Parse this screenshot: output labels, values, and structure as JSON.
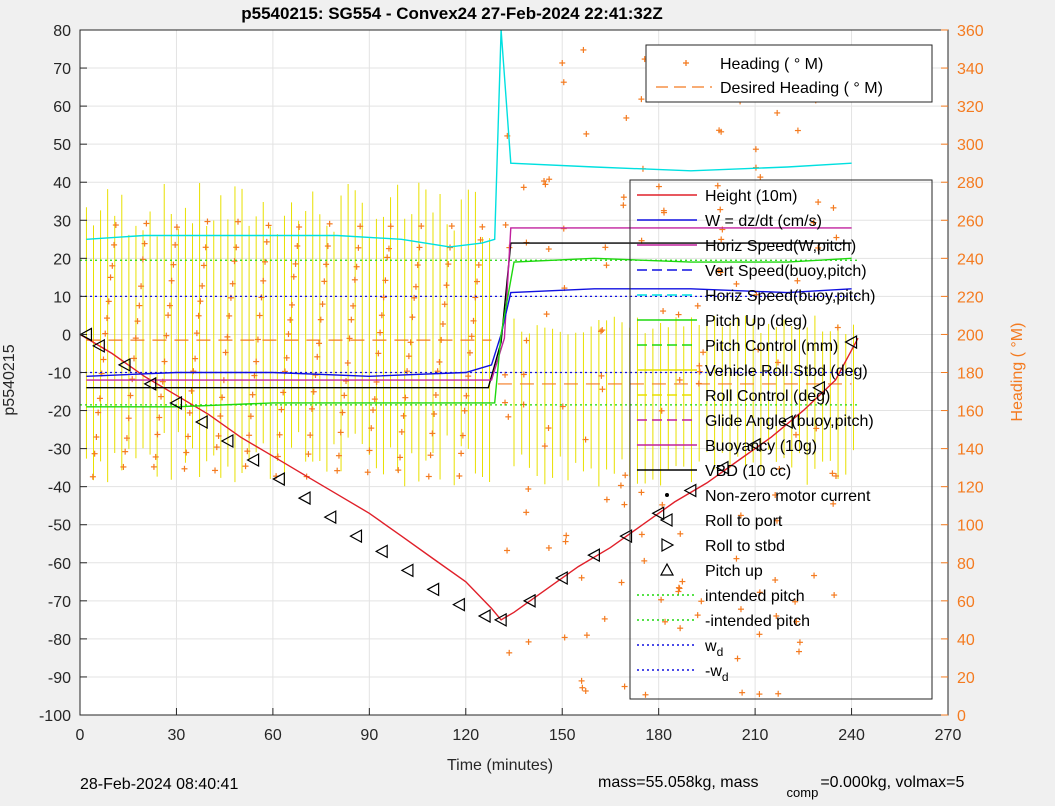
{
  "chart_data": {
    "type": "line",
    "title": "p5540215: SG554 - Convex24 27-Feb-2024 22:41:32Z",
    "xlabel": "Time (minutes)",
    "ylabel_left": "p5540215",
    "ylabel_right": "Heading (  °M)",
    "xlim": [
      0,
      270
    ],
    "ylim_left": [
      -100,
      80
    ],
    "ylim_right": [
      0,
      360
    ],
    "x_ticks": [
      "0",
      "30",
      "60",
      "90",
      "120",
      "150",
      "180",
      "210",
      "240",
      "270"
    ],
    "y_ticks_left": [
      "80",
      "70",
      "60",
      "50",
      "40",
      "30",
      "20",
      "10",
      "0",
      "-10",
      "-20",
      "-30",
      "-40",
      "-50",
      "-60",
      "-70",
      "-80",
      "-90",
      "-100"
    ],
    "y_ticks_right": [
      "360",
      "340",
      "320",
      "300",
      "280",
      "260",
      "240",
      "220",
      "200",
      "180",
      "160",
      "140",
      "120",
      "100",
      "80",
      "60",
      "40",
      "20",
      "0"
    ],
    "grid": true,
    "legend_right": {
      "placement": "top-right",
      "entries": [
        {
          "label": "Heading (  ° M)",
          "color": "#f47b20",
          "style": "plus"
        },
        {
          "label": "Desired Heading (    ° M)",
          "color": "#f47b20",
          "style": "dash"
        }
      ]
    },
    "legend_left": {
      "placement": "right",
      "entries": [
        {
          "label": "Height (10m)",
          "color": "#e0202a",
          "style": "solid"
        },
        {
          "label": "W = dz/dt (cm/s)",
          "color": "#1010e0",
          "style": "solid"
        },
        {
          "label": "Horiz Speed(W,pitch)",
          "color": "#c0209e",
          "style": "solid"
        },
        {
          "label": "Vert Speed(buoy,pitch)",
          "color": "#1010e0",
          "style": "dash"
        },
        {
          "label": "Horiz Speed(buoy,pitch)",
          "color": "#00e0e0",
          "style": "dash"
        },
        {
          "label": "Pitch Up (deg)",
          "color": "#1ed80e",
          "style": "solid"
        },
        {
          "label": "Pitch Control (mm)",
          "color": "#1ed80e",
          "style": "dash"
        },
        {
          "label": "Vehicle Roll Stbd (deg)",
          "color": "#e8e000",
          "style": "solid"
        },
        {
          "label": "Roll Control (deg)",
          "color": "#e8e000",
          "style": "dash"
        },
        {
          "label": "Glide Angle (buoy,pitch)",
          "color": "#c0209e",
          "style": "dash"
        },
        {
          "label": "Buoyancy (10g)",
          "color": "#c0209e",
          "style": "solid"
        },
        {
          "label": "VBD (10 cc)",
          "color": "#000000",
          "style": "solid"
        },
        {
          "label": "Non-zero motor current",
          "color": "#000000",
          "style": "dot"
        },
        {
          "label": "Roll to port",
          "color": "#000000",
          "style": "tri-left"
        },
        {
          "label": "Roll to stbd",
          "color": "#000000",
          "style": "tri-right"
        },
        {
          "label": "Pitch up",
          "color": "#000000",
          "style": "tri-up"
        },
        {
          "label": "intended pitch",
          "color": "#1ed80e",
          "style": "dotted"
        },
        {
          "label": "-intended pitch",
          "color": "#1ed80e",
          "style": "dotted"
        },
        {
          "label": "w",
          "sub": "d",
          "color": "#1010e0",
          "style": "dotted"
        },
        {
          "label": "-w",
          "sub": "d",
          "color": "#1010e0",
          "style": "dotted"
        }
      ]
    },
    "series": [
      {
        "name": "Height (10m)",
        "color": "#e0202a",
        "x": [
          0,
          10,
          20,
          30,
          40,
          50,
          60,
          70,
          80,
          90,
          100,
          110,
          120,
          128,
          131,
          135,
          145,
          155,
          165,
          175,
          185,
          195,
          205,
          215,
          225,
          235,
          242
        ],
        "y": [
          0,
          -5,
          -11,
          -16,
          -21,
          -27,
          -32,
          -37,
          -42,
          -47,
          -53,
          -59,
          -65,
          -72,
          -75,
          -73,
          -67,
          -61,
          -56,
          -50,
          -44,
          -39,
          -33,
          -27,
          -20,
          -12,
          -1
        ]
      },
      {
        "name": "VBD (10 cc)",
        "color": "#000000",
        "x": [
          2,
          127,
          131,
          134,
          240
        ],
        "y": [
          -14,
          -14,
          -2,
          24,
          24
        ]
      },
      {
        "name": "Buoyancy (10g)",
        "color": "#c0209e",
        "x": [
          2,
          128,
          132,
          134,
          240
        ],
        "y": [
          -12,
          -12,
          -1,
          28,
          28
        ]
      },
      {
        "name": "W = dz/dt (cm/s)",
        "color": "#1010e0",
        "x": [
          2,
          30,
          60,
          90,
          120,
          128,
          131,
          134,
          160,
          190,
          220,
          240
        ],
        "y": [
          -11,
          -10,
          -10,
          -11,
          -10,
          -8,
          0,
          11,
          12,
          12,
          11,
          12
        ]
      },
      {
        "name": "Horiz Speed(buoy,pitch)",
        "color": "#00e0e0",
        "x": [
          2,
          20,
          40,
          60,
          80,
          100,
          115,
          125,
          129,
          131,
          134,
          160,
          190,
          220,
          240
        ],
        "y": [
          25,
          26,
          26,
          26,
          26,
          25,
          23,
          24,
          25,
          80,
          45,
          44,
          43,
          44,
          45
        ]
      },
      {
        "name": "Pitch Up (deg)",
        "color": "#1ed80e",
        "x": [
          2,
          30,
          60,
          90,
          120,
          129,
          131,
          135,
          160,
          190,
          220,
          240
        ],
        "y": [
          -19,
          -19,
          -18,
          -18,
          -18,
          -18,
          0,
          19,
          20,
          19,
          19,
          20
        ]
      }
    ],
    "markers": [
      {
        "type": "roll-to-port",
        "x": [
          2,
          6,
          14,
          22,
          30,
          38,
          46,
          54,
          62,
          70,
          78,
          86,
          94,
          102,
          110,
          118,
          126,
          131,
          140,
          150,
          160,
          170,
          180,
          190,
          200,
          210,
          220,
          230,
          240
        ],
        "y": [
          0,
          -3,
          -8,
          -13,
          -18,
          -23,
          -28,
          -33,
          -38,
          -43,
          -48,
          -53,
          -57,
          -62,
          -67,
          -71,
          -74,
          -75,
          -70,
          -64,
          -58,
          -53,
          -47,
          -41,
          -35,
          -29,
          -23,
          -14,
          -2
        ]
      }
    ],
    "heading_band": {
      "name": "Heading (  ° M)",
      "color": "#f47b20",
      "range_deg": [
        120,
        280
      ]
    },
    "footer_left": "28-Feb-2024 08:40:41",
    "footer_right": "mass=55.058kg, mass",
    "footer_right_sub": "comp",
    "footer_right_tail": "=0.000kg, volmax=5"
  }
}
